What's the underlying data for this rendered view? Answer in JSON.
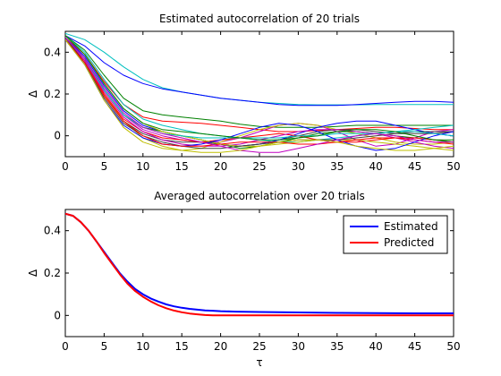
{
  "chart_data": [
    {
      "type": "line",
      "title": "Estimated autocorrelation of 20 trials",
      "xlabel": "",
      "ylabel": "Δ",
      "xlim": [
        0,
        50
      ],
      "ylim": [
        -0.1,
        0.5
      ],
      "xticks": [
        0,
        5,
        10,
        15,
        20,
        25,
        30,
        35,
        40,
        45,
        50
      ],
      "yticks": [
        0,
        0.2,
        0.4
      ],
      "grid": false,
      "x": [
        0,
        2.5,
        5,
        7.5,
        10,
        12.5,
        15,
        17.5,
        20,
        22.5,
        25,
        27.5,
        30,
        32.5,
        35,
        37.5,
        40,
        42.5,
        45,
        47.5,
        50
      ],
      "series": [
        {
          "color": "#00bfbf",
          "values": [
            0.49,
            0.46,
            0.4,
            0.33,
            0.27,
            0.23,
            0.21,
            0.195,
            0.18,
            0.17,
            0.16,
            0.155,
            0.15,
            0.148,
            0.148,
            0.148,
            0.15,
            0.15,
            0.15,
            0.15,
            0.15
          ]
        },
        {
          "color": "#0000ff",
          "values": [
            0.48,
            0.43,
            0.35,
            0.29,
            0.25,
            0.225,
            0.21,
            0.195,
            0.18,
            0.17,
            0.16,
            0.15,
            0.145,
            0.145,
            0.145,
            0.15,
            0.155,
            0.16,
            0.165,
            0.165,
            0.16
          ]
        },
        {
          "color": "#008000",
          "values": [
            0.48,
            0.41,
            0.29,
            0.18,
            0.12,
            0.1,
            0.09,
            0.08,
            0.07,
            0.055,
            0.045,
            0.04,
            0.04,
            0.04,
            0.045,
            0.05,
            0.05,
            0.05,
            0.05,
            0.05,
            0.05
          ]
        },
        {
          "color": "#ff0000",
          "values": [
            0.47,
            0.39,
            0.26,
            0.15,
            0.09,
            0.07,
            0.065,
            0.06,
            0.05,
            0.04,
            0.03,
            0.02,
            0.02,
            0.025,
            0.03,
            0.035,
            0.04,
            0.04,
            0.035,
            0.03,
            0.03
          ]
        },
        {
          "color": "#bf00bf",
          "values": [
            0.47,
            0.37,
            0.22,
            0.1,
            0.03,
            0.0,
            -0.02,
            -0.03,
            -0.03,
            -0.01,
            0.02,
            0.05,
            0.06,
            0.05,
            0.02,
            -0.02,
            -0.05,
            -0.04,
            -0.01,
            0.02,
            0.03
          ]
        },
        {
          "color": "#bfbf00",
          "values": [
            0.47,
            0.36,
            0.2,
            0.07,
            -0.01,
            -0.05,
            -0.07,
            -0.06,
            -0.03,
            0.0,
            0.03,
            0.05,
            0.06,
            0.05,
            0.03,
            0.01,
            -0.01,
            -0.03,
            -0.04,
            -0.04,
            -0.03
          ]
        },
        {
          "color": "#404040",
          "values": [
            0.46,
            0.35,
            0.19,
            0.07,
            0.01,
            -0.02,
            -0.03,
            -0.03,
            -0.04,
            -0.05,
            -0.04,
            -0.02,
            0.0,
            0.02,
            0.03,
            0.03,
            0.02,
            0.01,
            0.01,
            0.01,
            0.02
          ]
        },
        {
          "color": "#0000ff",
          "values": [
            0.47,
            0.38,
            0.24,
            0.12,
            0.05,
            0.02,
            0.0,
            -0.02,
            -0.04,
            -0.05,
            -0.04,
            -0.02,
            0.01,
            0.04,
            0.06,
            0.07,
            0.07,
            0.05,
            0.03,
            0.01,
            0.0
          ]
        },
        {
          "color": "#00bfbf",
          "values": [
            0.48,
            0.4,
            0.27,
            0.15,
            0.08,
            0.05,
            0.03,
            0.01,
            0.0,
            -0.01,
            -0.02,
            -0.03,
            -0.03,
            -0.02,
            -0.01,
            0.0,
            0.01,
            0.02,
            0.03,
            0.04,
            0.05
          ]
        },
        {
          "color": "#008000",
          "values": [
            0.47,
            0.37,
            0.22,
            0.1,
            0.04,
            0.02,
            0.0,
            -0.02,
            -0.04,
            -0.06,
            -0.05,
            -0.03,
            -0.01,
            0.01,
            0.02,
            0.02,
            0.01,
            0.0,
            -0.01,
            -0.02,
            -0.02
          ]
        },
        {
          "color": "#ff0000",
          "values": [
            0.46,
            0.36,
            0.2,
            0.08,
            0.02,
            -0.01,
            -0.02,
            -0.03,
            -0.02,
            -0.01,
            0.0,
            0.01,
            0.0,
            -0.02,
            -0.03,
            -0.03,
            -0.02,
            -0.01,
            -0.01,
            -0.02,
            -0.03
          ]
        },
        {
          "color": "#bf00bf",
          "values": [
            0.47,
            0.36,
            0.21,
            0.09,
            0.02,
            -0.02,
            -0.04,
            -0.05,
            -0.05,
            -0.04,
            -0.02,
            0.0,
            0.02,
            0.03,
            0.03,
            0.02,
            0.01,
            -0.01,
            -0.03,
            -0.05,
            -0.06
          ]
        },
        {
          "color": "#bfbf00",
          "values": [
            0.48,
            0.39,
            0.25,
            0.13,
            0.06,
            0.02,
            0.0,
            -0.02,
            -0.04,
            -0.05,
            -0.05,
            -0.04,
            -0.03,
            -0.02,
            -0.02,
            -0.02,
            -0.03,
            -0.04,
            -0.05,
            -0.06,
            -0.07
          ]
        },
        {
          "color": "#404040",
          "values": [
            0.47,
            0.35,
            0.18,
            0.06,
            0.0,
            -0.03,
            -0.05,
            -0.06,
            -0.06,
            -0.05,
            -0.04,
            -0.03,
            -0.02,
            -0.02,
            -0.02,
            -0.01,
            0.0,
            0.01,
            0.02,
            0.02,
            0.02
          ]
        },
        {
          "color": "#0000ff",
          "values": [
            0.46,
            0.34,
            0.17,
            0.05,
            -0.01,
            -0.04,
            -0.05,
            -0.04,
            -0.02,
            0.01,
            0.04,
            0.06,
            0.05,
            0.02,
            -0.02,
            -0.05,
            -0.07,
            -0.06,
            -0.03,
            0.0,
            0.02
          ]
        },
        {
          "color": "#00bfbf",
          "values": [
            0.47,
            0.37,
            0.22,
            0.1,
            0.04,
            0.01,
            0.0,
            -0.01,
            -0.01,
            -0.01,
            -0.01,
            -0.01,
            0.0,
            0.0,
            0.01,
            0.01,
            0.01,
            0.02,
            0.02,
            0.01,
            0.0
          ]
        },
        {
          "color": "#008000",
          "values": [
            0.48,
            0.39,
            0.25,
            0.13,
            0.06,
            0.03,
            0.02,
            0.01,
            0.0,
            -0.01,
            -0.02,
            -0.02,
            -0.01,
            0.0,
            0.02,
            0.03,
            0.03,
            0.02,
            0.0,
            -0.02,
            -0.03
          ]
        },
        {
          "color": "#ff0000",
          "values": [
            0.46,
            0.35,
            0.19,
            0.07,
            0.0,
            -0.04,
            -0.05,
            -0.05,
            -0.04,
            -0.03,
            -0.03,
            -0.03,
            -0.04,
            -0.04,
            -0.03,
            -0.02,
            -0.01,
            -0.01,
            -0.02,
            -0.03,
            -0.04
          ]
        },
        {
          "color": "#bf00bf",
          "values": [
            0.47,
            0.37,
            0.23,
            0.11,
            0.04,
            0.01,
            -0.01,
            -0.03,
            -0.05,
            -0.07,
            -0.08,
            -0.08,
            -0.06,
            -0.04,
            -0.02,
            0.0,
            0.01,
            0.0,
            -0.02,
            -0.03,
            -0.03
          ]
        },
        {
          "color": "#bfbf00",
          "values": [
            0.46,
            0.34,
            0.17,
            0.04,
            -0.03,
            -0.06,
            -0.07,
            -0.08,
            -0.08,
            -0.07,
            -0.05,
            -0.03,
            -0.02,
            -0.02,
            -0.03,
            -0.05,
            -0.06,
            -0.07,
            -0.07,
            -0.06,
            -0.05
          ]
        }
      ]
    },
    {
      "type": "line",
      "title": "Averaged autocorrelation over 20 trials",
      "xlabel": "τ",
      "ylabel": "Δ",
      "xlim": [
        0,
        50
      ],
      "ylim": [
        -0.1,
        0.5
      ],
      "xticks": [
        0,
        5,
        10,
        15,
        20,
        25,
        30,
        35,
        40,
        45,
        50
      ],
      "yticks": [
        0,
        0.2,
        0.4
      ],
      "grid": false,
      "legend_position": "top-right",
      "x": [
        0,
        1,
        2,
        3,
        4,
        5,
        6,
        7,
        8,
        9,
        10,
        11,
        12,
        13,
        14,
        15,
        16,
        17,
        18,
        19,
        20,
        22,
        25,
        30,
        35,
        40,
        45,
        50
      ],
      "series": [
        {
          "name": "Estimated",
          "color": "#0000ff",
          "values": [
            0.48,
            0.47,
            0.44,
            0.4,
            0.35,
            0.3,
            0.25,
            0.2,
            0.16,
            0.125,
            0.1,
            0.08,
            0.065,
            0.052,
            0.043,
            0.036,
            0.031,
            0.027,
            0.024,
            0.022,
            0.02,
            0.018,
            0.016,
            0.014,
            0.012,
            0.011,
            0.01,
            0.01
          ]
        },
        {
          "name": "Predicted",
          "color": "#ff0000",
          "values": [
            0.48,
            0.47,
            0.44,
            0.4,
            0.35,
            0.295,
            0.245,
            0.195,
            0.15,
            0.115,
            0.088,
            0.066,
            0.048,
            0.034,
            0.023,
            0.015,
            0.009,
            0.005,
            0.002,
            0.0,
            0.0,
            0.0,
            0.0,
            0.0,
            0.0,
            0.0,
            0.0,
            0.0
          ]
        }
      ]
    }
  ]
}
